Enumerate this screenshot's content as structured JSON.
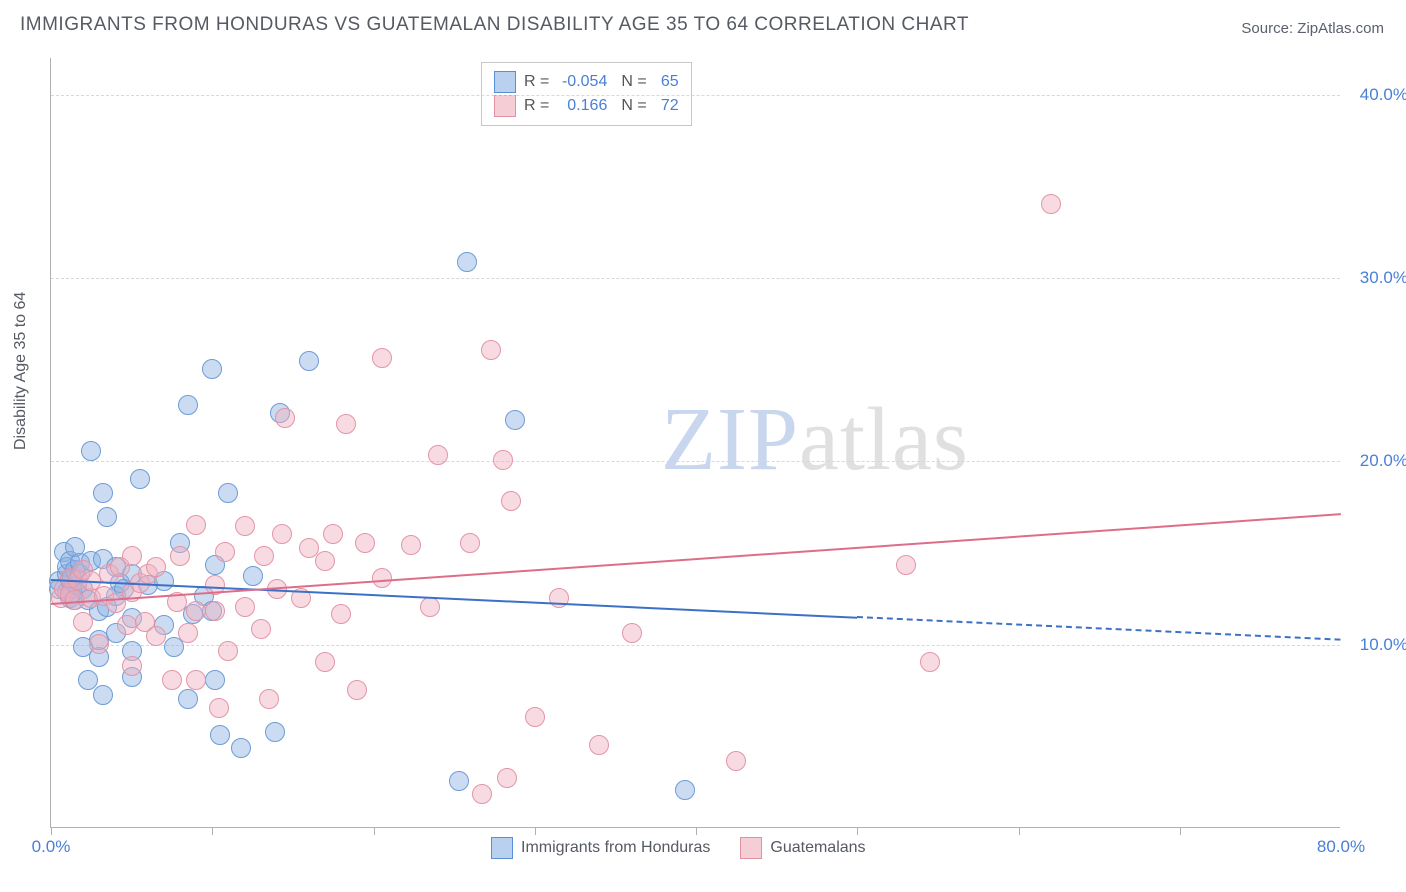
{
  "title": "IMMIGRANTS FROM HONDURAS VS GUATEMALAN DISABILITY AGE 35 TO 64 CORRELATION CHART",
  "source_label": "Source: ",
  "source_link": "ZipAtlas.com",
  "ylabel": "Disability Age 35 to 64",
  "watermark_a": "ZIP",
  "watermark_b": "atlas",
  "chart": {
    "type": "scatter",
    "xlim": [
      0,
      80
    ],
    "ylim": [
      0,
      42
    ],
    "grid_color": "#d8d8d8",
    "background_color": "#ffffff",
    "yticks": [
      {
        "v": 10,
        "label": "10.0%"
      },
      {
        "v": 20,
        "label": "20.0%"
      },
      {
        "v": 30,
        "label": "30.0%"
      },
      {
        "v": 40,
        "label": "40.0%"
      }
    ],
    "xticks": [
      0,
      10,
      20,
      30,
      40,
      50,
      60,
      70
    ],
    "xtick_labels": [
      {
        "v": 0,
        "label": "0.0%"
      },
      {
        "v": 80,
        "label": "80.0%"
      }
    ],
    "legend_top": [
      {
        "swatch_fill": "#b9d0ee",
        "swatch_stroke": "#5a8ed6",
        "r_label": "R =",
        "r_val": "-0.054",
        "n_label": "N =",
        "n_val": "65"
      },
      {
        "swatch_fill": "#f4cdd5",
        "swatch_stroke": "#e091a2",
        "r_label": "R =",
        "r_val": "0.166",
        "n_label": "N =",
        "n_val": "72"
      }
    ],
    "legend_bottom": [
      {
        "swatch_fill": "#b9d0ee",
        "swatch_stroke": "#5a8ed6",
        "label": "Immigrants from Honduras"
      },
      {
        "swatch_fill": "#f4cdd5",
        "swatch_stroke": "#e091a2",
        "label": "Guatemalans"
      }
    ],
    "marker_radius": 10,
    "marker_stroke_width": 1.5,
    "series": [
      {
        "name": "honduras",
        "fill": "rgba(139,178,226,0.45)",
        "stroke": "#6d9cd8",
        "trend": {
          "y_start": 13.6,
          "y_end": 10.3,
          "solid_until_x": 50,
          "color": "#3c71c6",
          "width": 2.5
        },
        "points": [
          [
            0.5,
            13.0
          ],
          [
            0.5,
            13.4
          ],
          [
            0.8,
            15.0
          ],
          [
            1.0,
            12.8
          ],
          [
            1.0,
            13.8
          ],
          [
            1.0,
            14.2
          ],
          [
            1.2,
            12.5
          ],
          [
            1.2,
            13.5
          ],
          [
            1.2,
            14.5
          ],
          [
            1.3,
            13.0
          ],
          [
            1.3,
            13.6
          ],
          [
            1.4,
            12.4
          ],
          [
            1.5,
            14.0
          ],
          [
            1.5,
            15.3
          ],
          [
            1.6,
            13.2
          ],
          [
            1.8,
            13.8
          ],
          [
            1.8,
            14.4
          ],
          [
            2.0,
            9.8
          ],
          [
            2.0,
            13.0
          ],
          [
            2.3,
            8.0
          ],
          [
            2.3,
            12.4
          ],
          [
            2.5,
            14.5
          ],
          [
            2.5,
            20.5
          ],
          [
            3.0,
            9.3
          ],
          [
            3.0,
            10.2
          ],
          [
            3.0,
            11.8
          ],
          [
            3.2,
            7.2
          ],
          [
            3.2,
            14.6
          ],
          [
            3.2,
            18.2
          ],
          [
            3.5,
            16.9
          ],
          [
            3.5,
            12.0
          ],
          [
            4.0,
            10.6
          ],
          [
            4.0,
            12.6
          ],
          [
            4.0,
            14.2
          ],
          [
            4.3,
            13.3
          ],
          [
            4.5,
            13.0
          ],
          [
            5.0,
            8.2
          ],
          [
            5.0,
            9.6
          ],
          [
            5.0,
            11.4
          ],
          [
            5.0,
            13.8
          ],
          [
            5.5,
            19.0
          ],
          [
            6.0,
            13.2
          ],
          [
            7.0,
            13.4
          ],
          [
            7.0,
            11.0
          ],
          [
            7.6,
            9.8
          ],
          [
            8.0,
            15.5
          ],
          [
            8.5,
            7.0
          ],
          [
            8.5,
            23.0
          ],
          [
            8.8,
            11.6
          ],
          [
            9.5,
            12.6
          ],
          [
            10.0,
            25.0
          ],
          [
            10.0,
            11.8
          ],
          [
            10.2,
            14.3
          ],
          [
            10.2,
            8.0
          ],
          [
            10.5,
            5.0
          ],
          [
            11.0,
            18.2
          ],
          [
            11.8,
            4.3
          ],
          [
            12.5,
            13.7
          ],
          [
            13.9,
            5.2
          ],
          [
            14.2,
            22.6
          ],
          [
            16.0,
            25.4
          ],
          [
            25.3,
            2.5
          ],
          [
            25.8,
            30.8
          ],
          [
            28.8,
            22.2
          ],
          [
            39.3,
            2.0
          ]
        ]
      },
      {
        "name": "guatemalans",
        "fill": "rgba(240,176,190,0.45)",
        "stroke": "#e296a7",
        "trend": {
          "y_start": 12.3,
          "y_end": 17.2,
          "solid_until_x": 80,
          "color": "#dd6e8a",
          "width": 2.5
        },
        "points": [
          [
            0.6,
            12.5
          ],
          [
            0.8,
            13.0
          ],
          [
            1.2,
            12.7
          ],
          [
            1.2,
            13.6
          ],
          [
            1.5,
            12.4
          ],
          [
            1.7,
            13.5
          ],
          [
            2.0,
            11.2
          ],
          [
            2.0,
            14.0
          ],
          [
            2.5,
            12.5
          ],
          [
            2.5,
            13.4
          ],
          [
            3.0,
            10.0
          ],
          [
            3.3,
            12.6
          ],
          [
            3.6,
            13.8
          ],
          [
            4.0,
            12.2
          ],
          [
            4.3,
            14.2
          ],
          [
            4.7,
            11.0
          ],
          [
            5.0,
            8.8
          ],
          [
            5.0,
            12.8
          ],
          [
            5.0,
            14.8
          ],
          [
            5.5,
            13.3
          ],
          [
            5.8,
            11.2
          ],
          [
            6.0,
            13.8
          ],
          [
            6.5,
            10.4
          ],
          [
            6.5,
            14.2
          ],
          [
            7.5,
            8.0
          ],
          [
            7.8,
            12.3
          ],
          [
            8.0,
            14.8
          ],
          [
            8.5,
            10.6
          ],
          [
            9.0,
            8.0
          ],
          [
            9.0,
            11.8
          ],
          [
            9.0,
            16.5
          ],
          [
            10.2,
            11.8
          ],
          [
            10.2,
            13.2
          ],
          [
            10.4,
            6.5
          ],
          [
            10.8,
            15.0
          ],
          [
            11.0,
            9.6
          ],
          [
            12.0,
            12.0
          ],
          [
            12.0,
            16.4
          ],
          [
            13.0,
            10.8
          ],
          [
            13.2,
            14.8
          ],
          [
            13.5,
            7.0
          ],
          [
            14.0,
            13.0
          ],
          [
            14.3,
            16.0
          ],
          [
            14.5,
            22.3
          ],
          [
            15.5,
            12.5
          ],
          [
            16.0,
            15.2
          ],
          [
            17.0,
            9.0
          ],
          [
            17.0,
            14.5
          ],
          [
            17.5,
            16.0
          ],
          [
            18.0,
            11.6
          ],
          [
            18.3,
            22.0
          ],
          [
            19.0,
            7.5
          ],
          [
            19.5,
            15.5
          ],
          [
            20.5,
            13.6
          ],
          [
            20.5,
            25.6
          ],
          [
            22.3,
            15.4
          ],
          [
            23.5,
            12.0
          ],
          [
            24.0,
            20.3
          ],
          [
            26.0,
            15.5
          ],
          [
            26.7,
            1.8
          ],
          [
            27.3,
            26.0
          ],
          [
            28.0,
            20.0
          ],
          [
            28.5,
            17.8
          ],
          [
            30.0,
            6.0
          ],
          [
            31.5,
            12.5
          ],
          [
            34.0,
            4.5
          ],
          [
            36.0,
            10.6
          ],
          [
            42.5,
            3.6
          ],
          [
            53.0,
            14.3
          ],
          [
            54.5,
            9.0
          ],
          [
            62.0,
            34.0
          ],
          [
            28.3,
            2.7
          ]
        ]
      }
    ]
  }
}
